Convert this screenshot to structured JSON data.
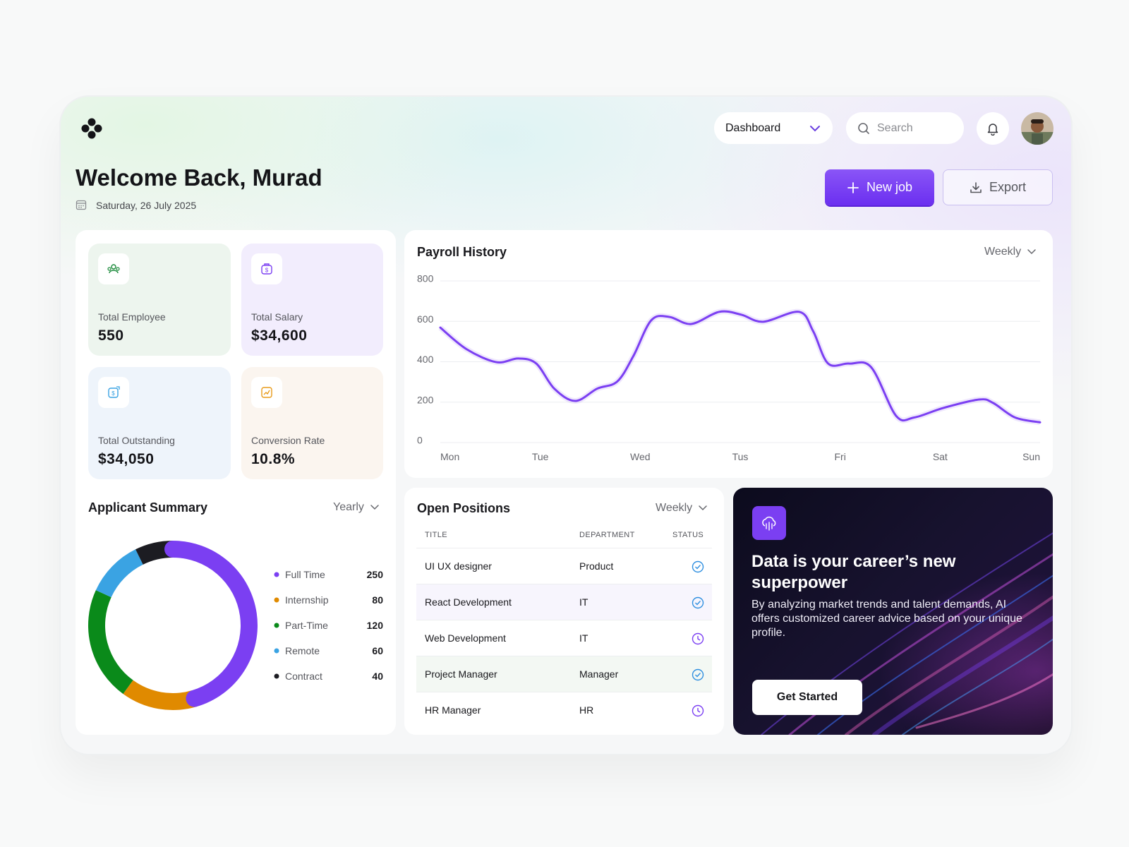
{
  "header": {
    "nav": "Dashboard",
    "search": "Search",
    "welcome": "Welcome Back, Murad",
    "date": "Saturday, 26 July 2025",
    "new_job": "New job",
    "export": "Export"
  },
  "stats": [
    {
      "label": "Total Employee",
      "value": "550"
    },
    {
      "label": "Total Salary",
      "value": "$34,600"
    },
    {
      "label": "Total Outstanding",
      "value": "$34,050"
    },
    {
      "label": "Conversion Rate",
      "value": "10.8%"
    }
  ],
  "chart_data": [
    {
      "type": "line",
      "title": "Payroll History",
      "period": "Weekly",
      "x": [
        0,
        0.26,
        0.56,
        0.78,
        0.96,
        1.14,
        1.35,
        1.57,
        1.77,
        1.93,
        2.11,
        2.29,
        2.51,
        2.79,
        3.01,
        3.23,
        3.59,
        3.73,
        3.88,
        4.09,
        4.31,
        4.56,
        4.74,
        5.03,
        5.39,
        5.53,
        5.75,
        6
      ],
      "values": [
        569,
        463,
        398,
        416,
        391,
        267,
        206,
        267,
        302,
        427,
        605,
        622,
        587,
        647,
        633,
        598,
        647,
        551,
        391,
        391,
        373,
        132,
        124,
        171,
        213,
        196,
        124,
        100
      ],
      "color": "#7b3ff2",
      "xlim": [
        0,
        6
      ],
      "xticks": [
        {
          "value": 0,
          "label": "Mon"
        },
        {
          "value": 1,
          "label": "Tue"
        },
        {
          "value": 2,
          "label": "Wed"
        },
        {
          "value": 3,
          "label": "Tus"
        },
        {
          "value": 4,
          "label": "Fri"
        },
        {
          "value": 5,
          "label": "Sat"
        },
        {
          "value": 6,
          "label": "Sun"
        }
      ],
      "ylim": [
        0,
        800
      ],
      "yticks": [
        0,
        200,
        400,
        600,
        800
      ],
      "grid": true
    },
    {
      "type": "donut",
      "title": "Applicant Summary",
      "period": "Yearly",
      "categories": [
        "Full Time",
        "Internship",
        "Part-Time",
        "Remote",
        "Contract"
      ],
      "values": [
        250,
        80,
        120,
        60,
        40
      ],
      "colors": [
        "#7b3ff2",
        "#e08a00",
        "#0a8a1a",
        "#3aa3e3",
        "#1c1c22"
      ]
    }
  ],
  "open_positions": {
    "title": "Open Positions",
    "period": "Weekly",
    "columns": [
      "TITLE",
      "DEPARTMENT",
      "STATUS"
    ],
    "rows": [
      [
        "UI UX designer",
        "Product"
      ],
      [
        "React Development",
        "IT"
      ],
      [
        "Web Development",
        "IT"
      ],
      [
        "Project Manager",
        "Manager"
      ],
      [
        "HR Manager",
        "HR"
      ]
    ]
  },
  "promo": {
    "title": "Data is your career’s new superpower",
    "text": "By analyzing market trends and talent demands, AI offers customized career advice based on your unique profile.",
    "button": "Get Started"
  }
}
